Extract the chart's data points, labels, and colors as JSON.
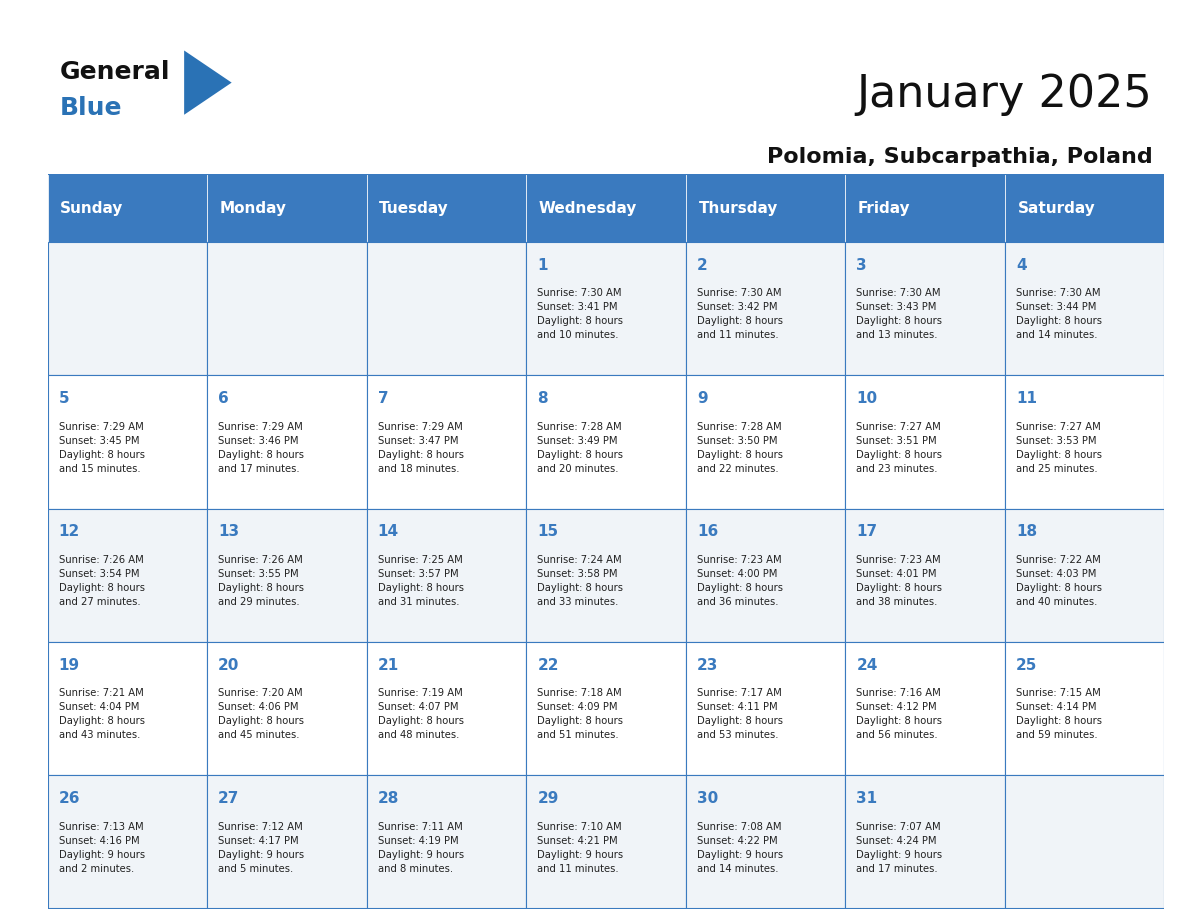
{
  "title": "January 2025",
  "subtitle": "Polomia, Subcarpathia, Poland",
  "header_bg_color": "#3a7abf",
  "header_text_color": "#ffffff",
  "row_bg_color_odd": "#f0f4f8",
  "row_bg_color_even": "#ffffff",
  "cell_border_color": "#3a7abf",
  "day_number_color": "#3a7abf",
  "text_color": "#222222",
  "days_of_week": [
    "Sunday",
    "Monday",
    "Tuesday",
    "Wednesday",
    "Thursday",
    "Friday",
    "Saturday"
  ],
  "weeks": [
    [
      {
        "day": null,
        "info": null
      },
      {
        "day": null,
        "info": null
      },
      {
        "day": null,
        "info": null
      },
      {
        "day": 1,
        "info": "Sunrise: 7:30 AM\nSunset: 3:41 PM\nDaylight: 8 hours\nand 10 minutes."
      },
      {
        "day": 2,
        "info": "Sunrise: 7:30 AM\nSunset: 3:42 PM\nDaylight: 8 hours\nand 11 minutes."
      },
      {
        "day": 3,
        "info": "Sunrise: 7:30 AM\nSunset: 3:43 PM\nDaylight: 8 hours\nand 13 minutes."
      },
      {
        "day": 4,
        "info": "Sunrise: 7:30 AM\nSunset: 3:44 PM\nDaylight: 8 hours\nand 14 minutes."
      }
    ],
    [
      {
        "day": 5,
        "info": "Sunrise: 7:29 AM\nSunset: 3:45 PM\nDaylight: 8 hours\nand 15 minutes."
      },
      {
        "day": 6,
        "info": "Sunrise: 7:29 AM\nSunset: 3:46 PM\nDaylight: 8 hours\nand 17 minutes."
      },
      {
        "day": 7,
        "info": "Sunrise: 7:29 AM\nSunset: 3:47 PM\nDaylight: 8 hours\nand 18 minutes."
      },
      {
        "day": 8,
        "info": "Sunrise: 7:28 AM\nSunset: 3:49 PM\nDaylight: 8 hours\nand 20 minutes."
      },
      {
        "day": 9,
        "info": "Sunrise: 7:28 AM\nSunset: 3:50 PM\nDaylight: 8 hours\nand 22 minutes."
      },
      {
        "day": 10,
        "info": "Sunrise: 7:27 AM\nSunset: 3:51 PM\nDaylight: 8 hours\nand 23 minutes."
      },
      {
        "day": 11,
        "info": "Sunrise: 7:27 AM\nSunset: 3:53 PM\nDaylight: 8 hours\nand 25 minutes."
      }
    ],
    [
      {
        "day": 12,
        "info": "Sunrise: 7:26 AM\nSunset: 3:54 PM\nDaylight: 8 hours\nand 27 minutes."
      },
      {
        "day": 13,
        "info": "Sunrise: 7:26 AM\nSunset: 3:55 PM\nDaylight: 8 hours\nand 29 minutes."
      },
      {
        "day": 14,
        "info": "Sunrise: 7:25 AM\nSunset: 3:57 PM\nDaylight: 8 hours\nand 31 minutes."
      },
      {
        "day": 15,
        "info": "Sunrise: 7:24 AM\nSunset: 3:58 PM\nDaylight: 8 hours\nand 33 minutes."
      },
      {
        "day": 16,
        "info": "Sunrise: 7:23 AM\nSunset: 4:00 PM\nDaylight: 8 hours\nand 36 minutes."
      },
      {
        "day": 17,
        "info": "Sunrise: 7:23 AM\nSunset: 4:01 PM\nDaylight: 8 hours\nand 38 minutes."
      },
      {
        "day": 18,
        "info": "Sunrise: 7:22 AM\nSunset: 4:03 PM\nDaylight: 8 hours\nand 40 minutes."
      }
    ],
    [
      {
        "day": 19,
        "info": "Sunrise: 7:21 AM\nSunset: 4:04 PM\nDaylight: 8 hours\nand 43 minutes."
      },
      {
        "day": 20,
        "info": "Sunrise: 7:20 AM\nSunset: 4:06 PM\nDaylight: 8 hours\nand 45 minutes."
      },
      {
        "day": 21,
        "info": "Sunrise: 7:19 AM\nSunset: 4:07 PM\nDaylight: 8 hours\nand 48 minutes."
      },
      {
        "day": 22,
        "info": "Sunrise: 7:18 AM\nSunset: 4:09 PM\nDaylight: 8 hours\nand 51 minutes."
      },
      {
        "day": 23,
        "info": "Sunrise: 7:17 AM\nSunset: 4:11 PM\nDaylight: 8 hours\nand 53 minutes."
      },
      {
        "day": 24,
        "info": "Sunrise: 7:16 AM\nSunset: 4:12 PM\nDaylight: 8 hours\nand 56 minutes."
      },
      {
        "day": 25,
        "info": "Sunrise: 7:15 AM\nSunset: 4:14 PM\nDaylight: 8 hours\nand 59 minutes."
      }
    ],
    [
      {
        "day": 26,
        "info": "Sunrise: 7:13 AM\nSunset: 4:16 PM\nDaylight: 9 hours\nand 2 minutes."
      },
      {
        "day": 27,
        "info": "Sunrise: 7:12 AM\nSunset: 4:17 PM\nDaylight: 9 hours\nand 5 minutes."
      },
      {
        "day": 28,
        "info": "Sunrise: 7:11 AM\nSunset: 4:19 PM\nDaylight: 9 hours\nand 8 minutes."
      },
      {
        "day": 29,
        "info": "Sunrise: 7:10 AM\nSunset: 4:21 PM\nDaylight: 9 hours\nand 11 minutes."
      },
      {
        "day": 30,
        "info": "Sunrise: 7:08 AM\nSunset: 4:22 PM\nDaylight: 9 hours\nand 14 minutes."
      },
      {
        "day": 31,
        "info": "Sunrise: 7:07 AM\nSunset: 4:24 PM\nDaylight: 9 hours\nand 17 minutes."
      },
      {
        "day": null,
        "info": null
      }
    ]
  ],
  "logo_general_color": "#111111",
  "logo_blue_color": "#2a72b5",
  "logo_triangle_color": "#2a72b5"
}
